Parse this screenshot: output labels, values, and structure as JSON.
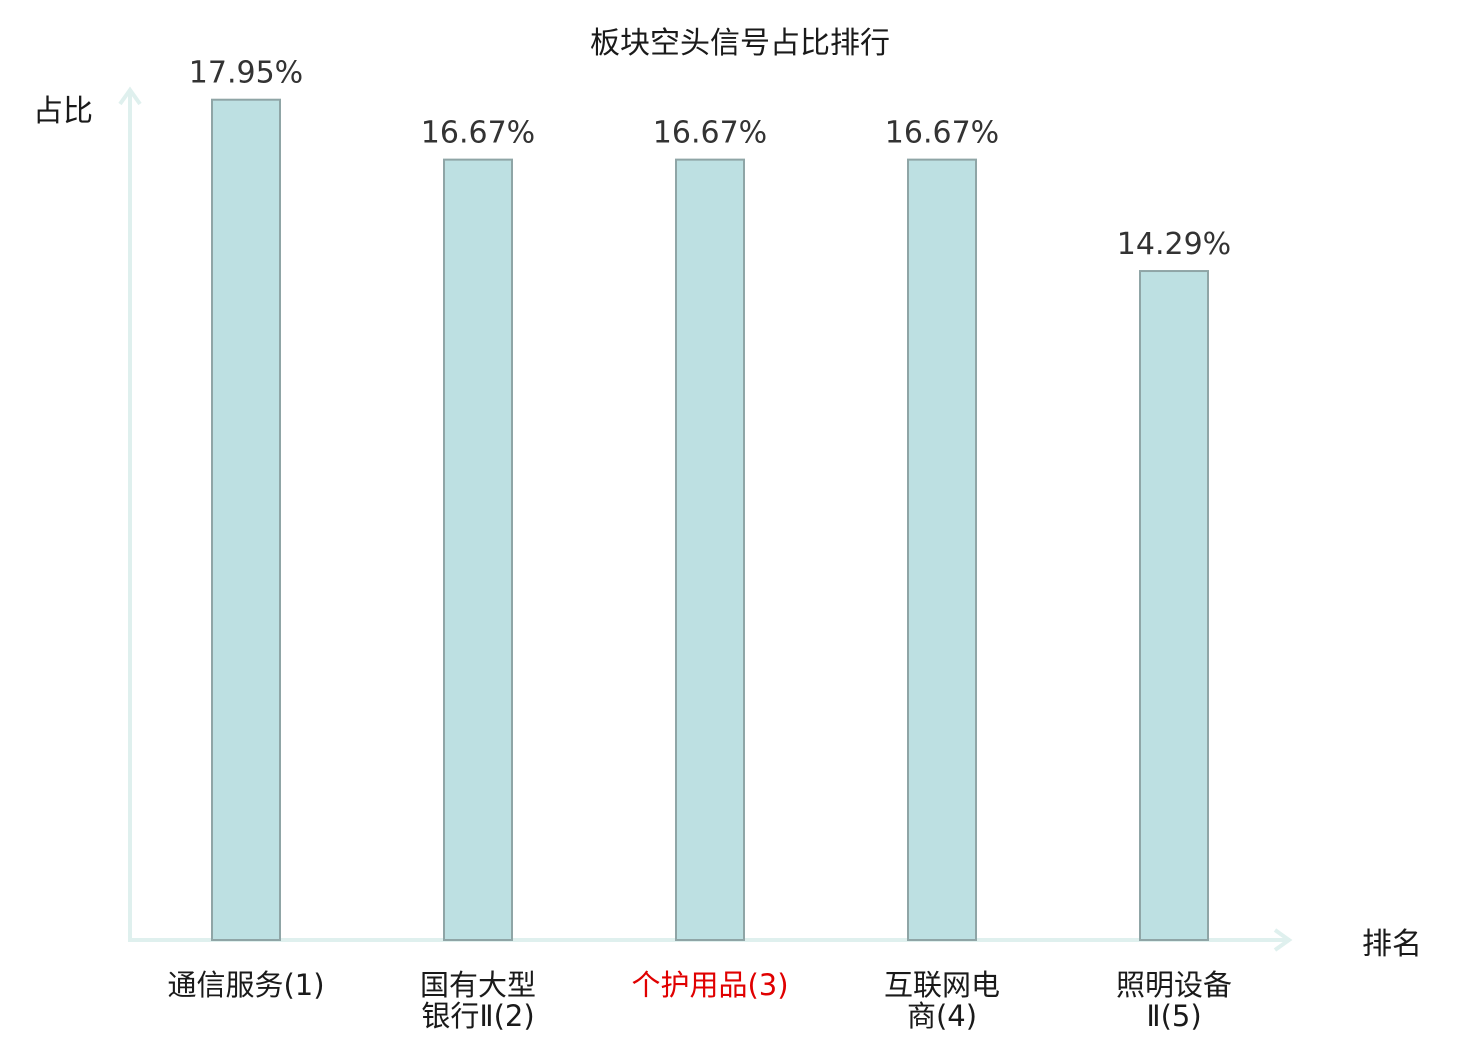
{
  "chart_data": {
    "type": "bar",
    "title": "板块空头信号占比排行",
    "ylabel": "占比",
    "xlabel": "排名",
    "ylim": [
      0,
      18.2
    ],
    "grid": false,
    "categories": [
      [
        "通信服务(1)"
      ],
      [
        "国有大型",
        "银行Ⅱ(2)"
      ],
      [
        "个护用品(3)"
      ],
      [
        "互联网电",
        "商(4)"
      ],
      [
        "照明设备",
        "Ⅱ(5)"
      ]
    ],
    "values": [
      17.95,
      16.67,
      16.67,
      16.67,
      14.29
    ],
    "value_labels": [
      "17.95%",
      "16.67%",
      "16.67%",
      "16.67%",
      "14.29%"
    ],
    "highlight_index": 2
  },
  "colors": {
    "bar_fill": "#bde0e2",
    "bar_stroke": "#8fa5a6",
    "axis": "#dff0ee",
    "text": "#1a1a1a",
    "value_label": "#333333",
    "highlight_text": "#e00000"
  }
}
